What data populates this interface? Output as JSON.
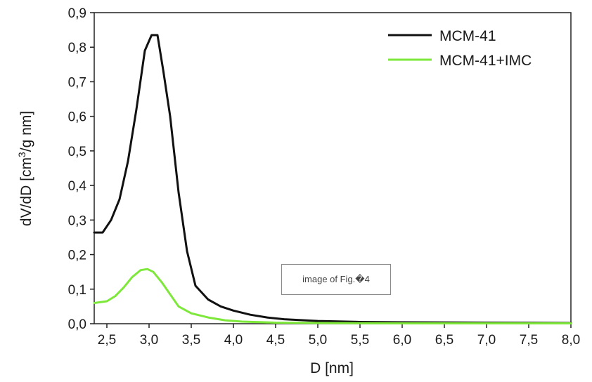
{
  "chart_data": {
    "type": "line",
    "xlabel": "D [nm]",
    "ylabel_parts": [
      "dV/dD [cm",
      "3",
      "/g nm]"
    ],
    "xlim": [
      2.35,
      8.0
    ],
    "ylim": [
      0.0,
      0.9
    ],
    "xticks": [
      2.5,
      3.0,
      3.5,
      4.0,
      4.5,
      5.0,
      5.5,
      6.0,
      6.5,
      7.0,
      7.5,
      8.0
    ],
    "xtick_labels": [
      "2,5",
      "3,0",
      "3,5",
      "4,0",
      "4,5",
      "5,0",
      "5,5",
      "6,0",
      "6,5",
      "7,0",
      "7,5",
      "8,0"
    ],
    "yticks": [
      0.0,
      0.1,
      0.2,
      0.3,
      0.4,
      0.5,
      0.6,
      0.7,
      0.8,
      0.9
    ],
    "ytick_labels": [
      "0,0",
      "0,1",
      "0,2",
      "0,3",
      "0,4",
      "0,5",
      "0,6",
      "0,7",
      "0,8",
      "0,9"
    ],
    "legend_position": "top-right",
    "grid": false,
    "series": [
      {
        "name": "MCM-41",
        "color": "#111111",
        "x": [
          2.35,
          2.45,
          2.55,
          2.65,
          2.75,
          2.85,
          2.95,
          3.03,
          3.1,
          3.17,
          3.25,
          3.35,
          3.45,
          3.55,
          3.7,
          3.85,
          4.0,
          4.2,
          4.4,
          4.6,
          5.0,
          5.5,
          6.0,
          7.0,
          8.0
        ],
        "y": [
          0.264,
          0.264,
          0.3,
          0.36,
          0.47,
          0.62,
          0.79,
          0.835,
          0.835,
          0.73,
          0.6,
          0.38,
          0.21,
          0.11,
          0.07,
          0.05,
          0.038,
          0.026,
          0.018,
          0.013,
          0.008,
          0.005,
          0.004,
          0.003,
          0.002
        ]
      },
      {
        "name": "MCM-41+IMC",
        "color": "#7de83a",
        "x": [
          2.35,
          2.5,
          2.6,
          2.7,
          2.8,
          2.9,
          2.98,
          3.05,
          3.15,
          3.25,
          3.35,
          3.5,
          3.7,
          3.9,
          4.1,
          4.5,
          5.0,
          6.0,
          7.0,
          8.0
        ],
        "y": [
          0.06,
          0.065,
          0.08,
          0.105,
          0.135,
          0.155,
          0.158,
          0.15,
          0.12,
          0.085,
          0.05,
          0.03,
          0.018,
          0.01,
          0.006,
          0.003,
          0.002,
          0.001,
          0.001,
          0.001
        ]
      }
    ]
  },
  "stamp_text": "image of Fig.�4"
}
